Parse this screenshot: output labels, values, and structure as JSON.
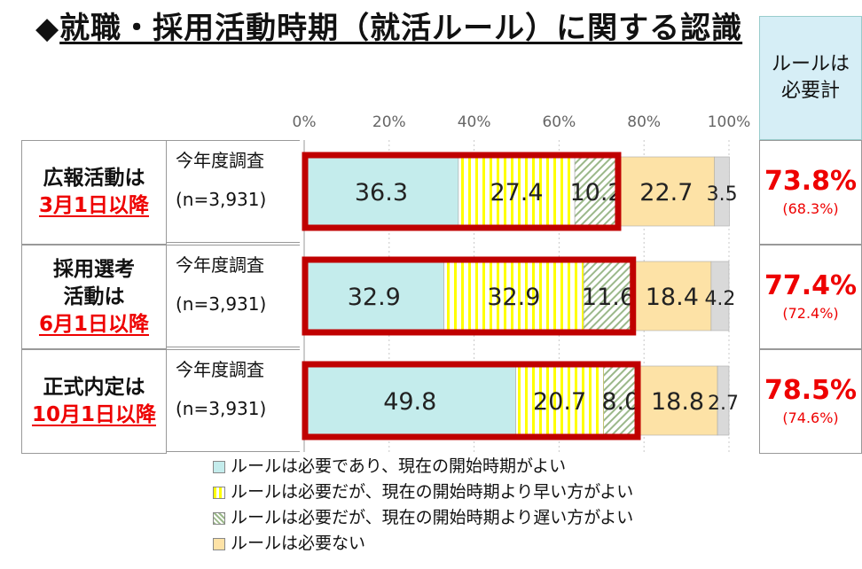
{
  "title": "就職・採用活動時期（就活ルール）に関する認識",
  "title_marker": "◆",
  "required_header": "ルールは必要計",
  "colors": {
    "ok": "#c4ecec",
    "early": "#ffff00",
    "late": "#d8e6cc",
    "none": "#fde2a6",
    "other": "#d9d9d9",
    "highlight": "#c00000"
  },
  "rows": [
    {
      "label_line1": "広報活動は",
      "label_line2": "",
      "label_red": "3月1日以降",
      "survey": "今年度調査",
      "n": "(n=3,931)",
      "required": "73.8%",
      "previous": "(68.3%)"
    },
    {
      "label_line1": "採用選考",
      "label_line2": "活動は",
      "label_red": "6月1日以降",
      "survey": "今年度調査",
      "n": "(n=3,931)",
      "required": "77.4%",
      "previous": "(72.4%)"
    },
    {
      "label_line1": "正式内定は",
      "label_line2": "",
      "label_red": "10月1日以降",
      "survey": "今年度調査",
      "n": "(n=3,931)",
      "required": "78.5%",
      "previous": "(74.6%)"
    }
  ],
  "chart_data": {
    "type": "bar",
    "orientation": "horizontal-stacked-100",
    "xlim": [
      0,
      100
    ],
    "ticks": [
      "0%",
      "20%",
      "40%",
      "60%",
      "80%",
      "100%"
    ],
    "categories": [
      "広報活動は3月1日以降",
      "採用選考活動は6月1日以降",
      "正式内定は10月1日以降"
    ],
    "series": [
      {
        "name": "ルールは必要であり、現在の開始時期がよい",
        "key": "ok",
        "values": [
          36.3,
          32.9,
          49.8
        ],
        "labels": [
          "36.3",
          "32.9",
          "49.8"
        ]
      },
      {
        "name": "ルールは必要だが、現在の開始時期より早い方がよい",
        "key": "early",
        "values": [
          27.4,
          32.9,
          20.7
        ],
        "labels": [
          "27.4",
          "32.9",
          "20.7"
        ]
      },
      {
        "name": "ルールは必要だが、現在の開始時期より遅い方がよい",
        "key": "late",
        "values": [
          10.2,
          11.6,
          8.0
        ],
        "labels": [
          "10.2",
          "11.6",
          "8.0"
        ]
      },
      {
        "name": "ルールは必要ない",
        "key": "none",
        "values": [
          22.7,
          18.4,
          18.8
        ],
        "labels": [
          "22.7",
          "18.4",
          "18.8"
        ]
      },
      {
        "name": "",
        "key": "other",
        "values": [
          3.5,
          4.2,
          2.7
        ],
        "labels": [
          "3.5",
          "4.2",
          "2.7"
        ]
      }
    ],
    "legend_position": "bottom"
  }
}
